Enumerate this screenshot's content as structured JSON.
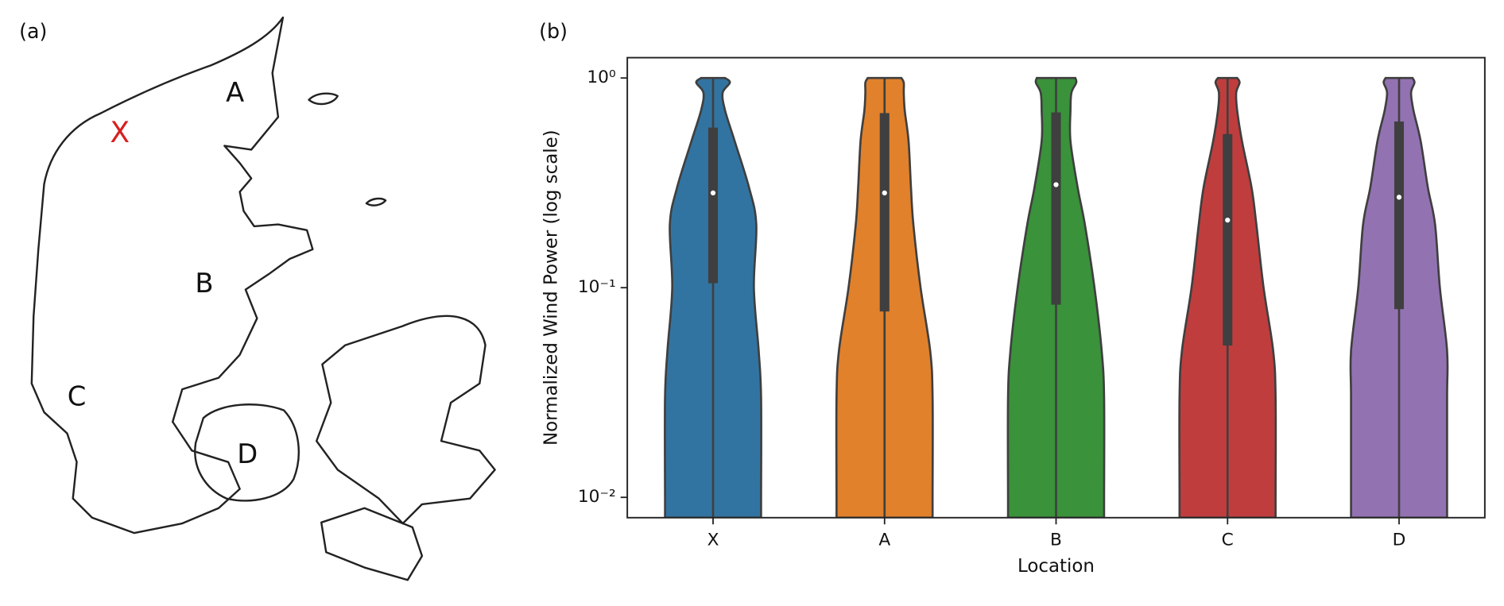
{
  "panel_a": {
    "label": "(a)",
    "regions": [
      "A",
      "B",
      "C",
      "D"
    ],
    "site_marker": "X"
  },
  "chart_data": {
    "type": "violin",
    "panel_label": "(b)",
    "xlabel": "Location",
    "ylabel": "Normalized Wind Power (log scale)",
    "categories": [
      "X",
      "A",
      "B",
      "C",
      "D"
    ],
    "yscale": "log",
    "ylim": [
      0.008,
      1.25
    ],
    "yticks": [
      {
        "value": 0.01,
        "label": "10⁻²"
      },
      {
        "value": 0.1,
        "label": "10⁻¹"
      },
      {
        "value": 1,
        "label": "10⁰"
      }
    ],
    "density_levels": [
      1,
      0.95,
      0.85,
      0.7,
      0.5,
      0.3,
      0.2,
      0.1,
      0.05,
      0.03,
      0.01,
      0.008
    ],
    "series": [
      {
        "color": "#3274a1",
        "max": 1,
        "q3": 0.58,
        "median": 0.283,
        "q1": 0.105,
        "density": [
          0.25,
          0.35,
          0.2,
          0.25,
          0.45,
          0.75,
          0.9,
          0.85,
          0.95,
          1,
          1,
          1
        ]
      },
      {
        "color": "#e1812c",
        "max": 1,
        "q3": 0.68,
        "median": 0.283,
        "q1": 0.077,
        "density": [
          0.35,
          0.4,
          0.4,
          0.42,
          0.5,
          0.55,
          0.6,
          0.75,
          0.95,
          1,
          1,
          1
        ]
      },
      {
        "color": "#3a923a",
        "max": 1,
        "q3": 0.685,
        "median": 0.31,
        "q1": 0.083,
        "density": [
          0.4,
          0.42,
          0.32,
          0.3,
          0.3,
          0.45,
          0.6,
          0.8,
          0.95,
          1,
          1,
          1
        ]
      },
      {
        "color": "#c03d3e",
        "max": 1,
        "q3": 0.54,
        "median": 0.21,
        "q1": 0.053,
        "density": [
          0.2,
          0.25,
          0.18,
          0.2,
          0.3,
          0.5,
          0.6,
          0.75,
          0.95,
          1,
          1,
          1
        ]
      },
      {
        "color": "#9372b2",
        "max": 1,
        "q3": 0.62,
        "median": 0.27,
        "q1": 0.079,
        "density": [
          0.28,
          0.32,
          0.25,
          0.3,
          0.45,
          0.6,
          0.75,
          0.85,
          1,
          1,
          1,
          1
        ]
      }
    ]
  }
}
